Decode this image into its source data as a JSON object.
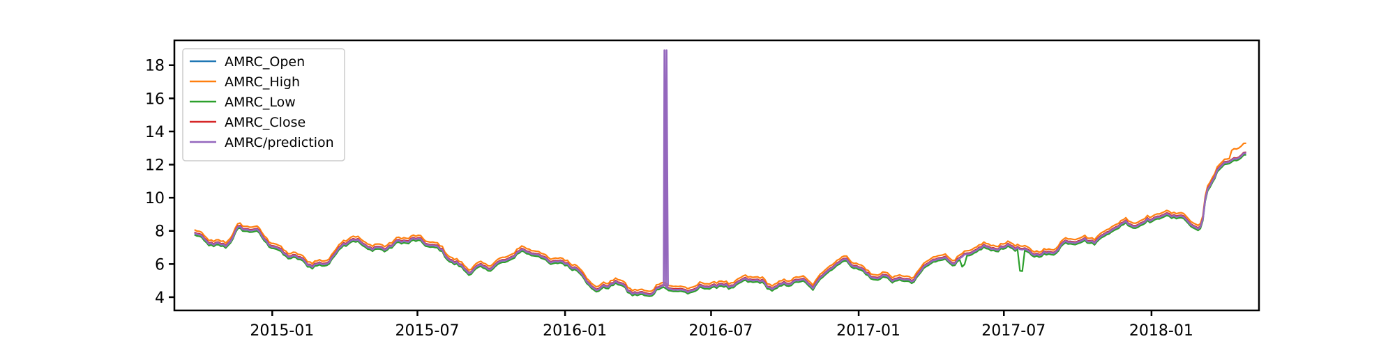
{
  "chart_data": {
    "type": "line",
    "title": "",
    "xlabel": "",
    "ylabel": "",
    "xlim": [
      "2014-09-01",
      "2018-05-15"
    ],
    "ylim": [
      3.2,
      19.5
    ],
    "grid": false,
    "legend_placement": "top-left",
    "x_ticks": [
      {
        "date": "2015-01-01",
        "label": "2015-01"
      },
      {
        "date": "2015-07-01",
        "label": "2015-07"
      },
      {
        "date": "2016-01-01",
        "label": "2016-01"
      },
      {
        "date": "2016-07-01",
        "label": "2016-07"
      },
      {
        "date": "2017-01-01",
        "label": "2017-01"
      },
      {
        "date": "2017-07-01",
        "label": "2017-07"
      },
      {
        "date": "2018-01-01",
        "label": "2018-01"
      }
    ],
    "y_ticks": [
      {
        "value": 4,
        "label": "4"
      },
      {
        "value": 6,
        "label": "6"
      },
      {
        "value": 8,
        "label": "8"
      },
      {
        "value": 10,
        "label": "10"
      },
      {
        "value": 12,
        "label": "12"
      },
      {
        "value": 14,
        "label": "14"
      },
      {
        "value": 16,
        "label": "16"
      },
      {
        "value": 18,
        "label": "18"
      }
    ],
    "close_keypoints": [
      [
        "2014-09-26",
        7.9
      ],
      [
        "2014-10-20",
        7.0
      ],
      [
        "2014-11-05",
        7.4
      ],
      [
        "2014-11-20",
        8.3
      ],
      [
        "2014-12-10",
        7.9
      ],
      [
        "2015-01-05",
        7.2
      ],
      [
        "2015-02-01",
        6.2
      ],
      [
        "2015-02-20",
        6.0
      ],
      [
        "2015-03-15",
        6.4
      ],
      [
        "2015-04-10",
        7.5
      ],
      [
        "2015-05-01",
        7.3
      ],
      [
        "2015-05-20",
        6.8
      ],
      [
        "2015-06-05",
        7.2
      ],
      [
        "2015-06-25",
        7.8
      ],
      [
        "2015-07-20",
        7.0
      ],
      [
        "2015-08-20",
        6.2
      ],
      [
        "2015-09-05",
        5.6
      ],
      [
        "2015-09-25",
        5.7
      ],
      [
        "2015-10-20",
        6.5
      ],
      [
        "2015-11-10",
        6.7
      ],
      [
        "2015-12-10",
        6.5
      ],
      [
        "2016-01-05",
        5.9
      ],
      [
        "2016-01-25",
        5.3
      ],
      [
        "2016-02-10",
        4.6
      ],
      [
        "2016-03-01",
        4.8
      ],
      [
        "2016-03-20",
        4.5
      ],
      [
        "2016-04-15",
        4.3
      ],
      [
        "2016-05-01",
        4.5
      ],
      [
        "2016-06-01",
        4.6
      ],
      [
        "2016-06-25",
        4.5
      ],
      [
        "2016-07-20",
        4.9
      ],
      [
        "2016-08-15",
        5.0
      ],
      [
        "2016-09-10",
        4.8
      ],
      [
        "2016-10-10",
        4.9
      ],
      [
        "2016-11-05",
        4.8
      ],
      [
        "2016-11-25",
        5.9
      ],
      [
        "2016-12-20",
        6.1
      ],
      [
        "2017-01-10",
        5.7
      ],
      [
        "2017-01-25",
        5.2
      ],
      [
        "2017-02-15",
        5.0
      ],
      [
        "2017-03-10",
        5.3
      ],
      [
        "2017-04-05",
        6.2
      ],
      [
        "2017-05-01",
        6.4
      ],
      [
        "2017-06-01",
        6.8
      ],
      [
        "2017-06-20",
        7.1
      ],
      [
        "2017-07-10",
        7.3
      ],
      [
        "2017-07-25",
        6.6
      ],
      [
        "2017-08-15",
        6.7
      ],
      [
        "2017-09-10",
        7.1
      ],
      [
        "2017-10-10",
        7.5
      ],
      [
        "2017-11-10",
        7.9
      ],
      [
        "2017-12-01",
        8.5
      ],
      [
        "2017-12-25",
        8.7
      ],
      [
        "2018-01-20",
        8.8
      ],
      [
        "2018-02-05",
        9.2
      ],
      [
        "2018-02-20",
        8.5
      ],
      [
        "2018-03-05",
        8.1
      ],
      [
        "2018-03-10",
        10.0
      ],
      [
        "2018-03-25",
        11.9
      ],
      [
        "2018-04-15",
        12.6
      ],
      [
        "2018-04-30",
        12.5
      ]
    ],
    "series": [
      {
        "name": "AMRC_Open",
        "color": "#1f77b4",
        "offset": 0.0,
        "spike": false
      },
      {
        "name": "AMRC_High",
        "color": "#ff7f0e",
        "offset": 0.15,
        "spike": false
      },
      {
        "name": "AMRC_Low",
        "color": "#2ca02c",
        "offset": -0.15,
        "spike": false
      },
      {
        "name": "AMRC_Close",
        "color": "#d62728",
        "offset": 0.0,
        "spike": false
      },
      {
        "name": "AMRC/prediction",
        "color": "#9467bd",
        "offset": -0.05,
        "spike": true
      }
    ],
    "prediction_spike": {
      "start": "2016-04-28",
      "end": "2016-05-08",
      "peak": 18.9
    }
  }
}
